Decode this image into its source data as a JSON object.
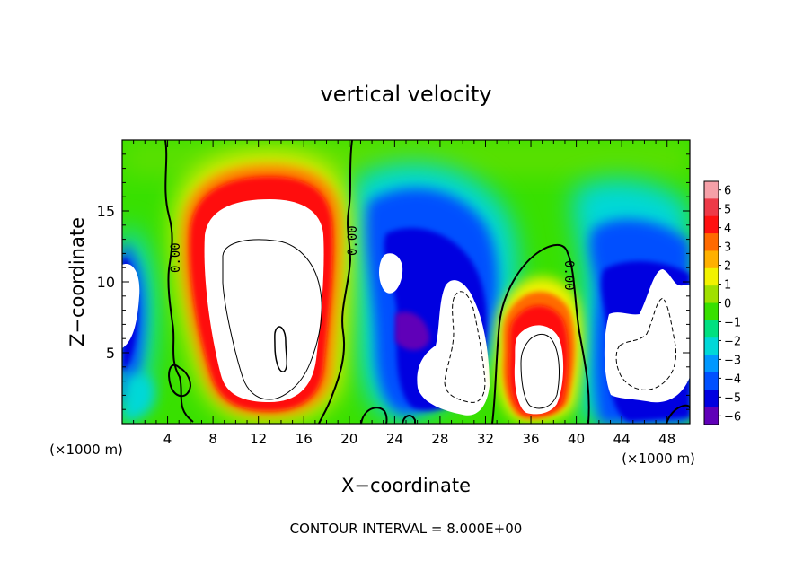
{
  "chart_data": {
    "type": "heatmap",
    "title": "vertical velocity",
    "xlabel": "X−coordinate",
    "ylabel": "Z−coordinate",
    "x_unit": "(×1000 m)",
    "y_unit": "(×1000 m)",
    "xlim": [
      0,
      50
    ],
    "ylim": [
      0,
      20
    ],
    "x_ticks": [
      4,
      8,
      12,
      16,
      20,
      24,
      28,
      32,
      36,
      40,
      44,
      48
    ],
    "y_ticks": [
      5,
      10,
      15
    ],
    "contour_labels": [
      "0.00",
      "0.00",
      "0.00"
    ],
    "footer": "CONTOUR INTERVAL = 8.000E+00",
    "colorbar": {
      "ticks": [
        "6",
        "5",
        "4",
        "3",
        "2",
        "1",
        "0",
        "−1",
        "−2",
        "−3",
        "−4",
        "−5",
        "−6"
      ],
      "colors": [
        "#f6a0a8",
        "#ee3a48",
        "#ff1010",
        "#ff6a00",
        "#ffb000",
        "#f2f200",
        "#a0e000",
        "#38e000",
        "#00e080",
        "#00d8d8",
        "#0098ff",
        "#0050ff",
        "#0000e0",
        "#6000b8"
      ]
    },
    "features": [
      {
        "name": "updraft",
        "x": 13,
        "z": 10.5,
        "w": 6,
        "rx": 4.0,
        "rz": 7.5
      },
      {
        "name": "updraft",
        "x": 36,
        "z": 4.5,
        "w": 6,
        "rx": 2.6,
        "rz": 4.5
      },
      {
        "name": "downdraft",
        "x": 0.6,
        "z": 7.5,
        "w": -6,
        "rx": 1.5,
        "rz": 4.0
      },
      {
        "name": "downdraft",
        "x": 29,
        "z": 6.5,
        "w": -6,
        "rx": 4.0,
        "rz": 4.5
      },
      {
        "name": "downdraft",
        "x": 46.5,
        "z": 6.0,
        "w": -6,
        "rx": 3.4,
        "rz": 4.5
      }
    ]
  }
}
